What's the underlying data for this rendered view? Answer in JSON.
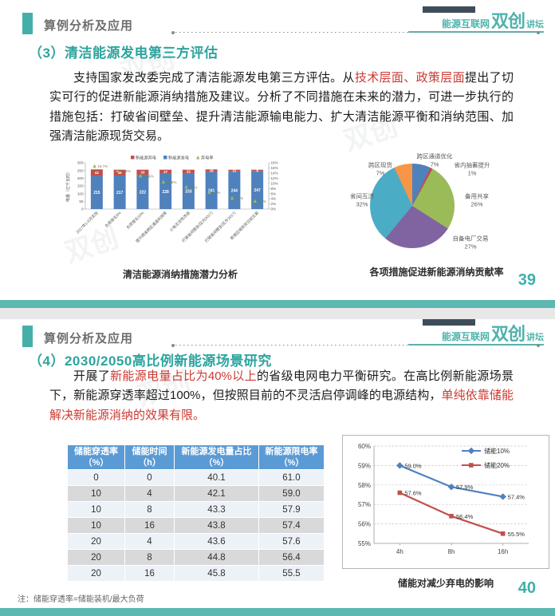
{
  "header": {
    "title": "算例分析及应用",
    "logo_left": "能源互联网",
    "logo_main": "双创",
    "logo_right": "讲坛"
  },
  "watermark": "双创",
  "slides": [
    {
      "title": "（3）清洁能源发电第三方评估",
      "paragraph": [
        {
          "t": "支持国家发改委完成了清洁能源发电第三方评估。从",
          "red": false
        },
        {
          "t": "技术层面、政策层面",
          "red": true
        },
        {
          "t": "提出了切实可行的促进新能源消纳措施及建议。分析了不同措施在未来的潜力，可进一步执行的措施包括：打破省间壁垒、提升清洁能源输电能力、扩大清洁能源平衡和消纳范围、加强清洁能源现货交易。",
          "red": false
        }
      ],
      "page_number": "39"
    },
    {
      "title": "（4）2030/2050高比例新能源场景研究",
      "paragraph": [
        {
          "t": "开展了",
          "red": false
        },
        {
          "t": "新能源电量占比为40%以上",
          "red": true
        },
        {
          "t": "的省级电网电力平衡研究。在高比例新能源场景下，新能源穿透率超过100%，但按照目前的不灵活启停调峰的电源结构，",
          "red": false
        },
        {
          "t": "单纯依靠储能解决新能源消纳的效果有限。",
          "red": true
        }
      ],
      "page_number": "40"
    }
  ],
  "table": {
    "headers": [
      {
        "l1": "储能穿透率",
        "l2": "（%）"
      },
      {
        "l1": "储能时间",
        "l2": "（h）"
      },
      {
        "l1": "新能源发电量占比",
        "l2": "（%）"
      },
      {
        "l1": "新能源限电率",
        "l2": "（%）"
      }
    ],
    "rows": [
      [
        "0",
        "0",
        "40.1",
        "61.0"
      ],
      [
        "10",
        "4",
        "42.1",
        "59.0"
      ],
      [
        "10",
        "8",
        "43.3",
        "57.9"
      ],
      [
        "10",
        "16",
        "43.8",
        "57.4"
      ],
      [
        "20",
        "4",
        "43.6",
        "57.6"
      ],
      [
        "20",
        "8",
        "44.8",
        "56.4"
      ],
      [
        "20",
        "16",
        "45.8",
        "55.5"
      ]
    ],
    "note": "注：储能穿透率=储能装机/最大负荷"
  },
  "chart_data": [
    {
      "type": "bar",
      "title": "清洁能源消纳措施潜力分析",
      "ylabel": "电量（亿千瓦时）",
      "ylim": [
        0,
        300
      ],
      "yticks": [
        0,
        50,
        100,
        150,
        200,
        250,
        300
      ],
      "y2lim": [
        0,
        18
      ],
      "y2ticks": [
        "0%",
        "2%",
        "4%",
        "6%",
        "8%",
        "10%",
        "12%",
        "14%",
        "16%",
        "18%"
      ],
      "categories": [
        "2017年1-6月实际",
        "负荷增长5%",
        "负荷增长10%",
        "提升跨省跨区通道利用率",
        "火电灵活性改造",
        "打破省间壁垒(区内2017)",
        "打破省间壁垒(区外2017)",
        "新增区域现货日前交易"
      ],
      "series": [
        {
          "name": "新能源弃电",
          "color": "#c0504d",
          "values": [
            42,
            38,
            33,
            27,
            22,
            16,
            11,
            8
          ]
        },
        {
          "name": "新能源发电",
          "color": "#4f81bd",
          "values": [
            215,
            217,
            222,
            228,
            233,
            241,
            244,
            247
          ]
        },
        {
          "name": "弃电率",
          "color": "#9bbb59",
          "marker": "triangle",
          "values": [
            16.7,
            14.9,
            12.9,
            10.6,
            8.6,
            6.5,
            4.3,
            3.1
          ],
          "labels": [
            "16.7%",
            "14.9%",
            "12.9%",
            "10.6%",
            "8.6%",
            "6.5%",
            "4.3%",
            "3.1%"
          ]
        }
      ],
      "legend_position": "top"
    },
    {
      "type": "pie",
      "title": "各项措施促进新能源消纳贡献率",
      "slices": [
        {
          "label": "跨区通道优化",
          "pct": 7,
          "pct_label": "7%",
          "color": "#4f81bd"
        },
        {
          "label": "省内抽蓄提升",
          "pct": 1,
          "pct_label": "1%",
          "color": "#c0504d"
        },
        {
          "label": "备用共享",
          "pct": 26,
          "pct_label": "26%",
          "color": "#9bbb59"
        },
        {
          "label": "自备电厂交易",
          "pct": 27,
          "pct_label": "27%",
          "color": "#8064a2"
        },
        {
          "label": "省间互济",
          "pct": 32,
          "pct_label": "32%",
          "color": "#4bacc6"
        },
        {
          "label": "跨区现货",
          "pct": 7,
          "pct_label": "7%",
          "color": "#f79646"
        }
      ]
    },
    {
      "type": "line",
      "title": "储能对减少弃电的影响",
      "x": [
        "4h",
        "8h",
        "16h"
      ],
      "ylim": [
        55,
        60
      ],
      "yticks": [
        "55%",
        "56%",
        "57%",
        "58%",
        "59%",
        "60%"
      ],
      "grid": "dashed",
      "legend_position": "top-right",
      "series": [
        {
          "name": "储能10%",
          "color": "#4f81bd",
          "marker": "diamond",
          "values": [
            59.0,
            57.9,
            57.4
          ],
          "labels": [
            "59.0%",
            "57.9%",
            "57.4%"
          ]
        },
        {
          "name": "储能20%",
          "color": "#c0504d",
          "marker": "square",
          "values": [
            57.6,
            56.4,
            55.5
          ],
          "labels": [
            "57.6%",
            "56.4%",
            "55.5%"
          ]
        }
      ]
    }
  ]
}
